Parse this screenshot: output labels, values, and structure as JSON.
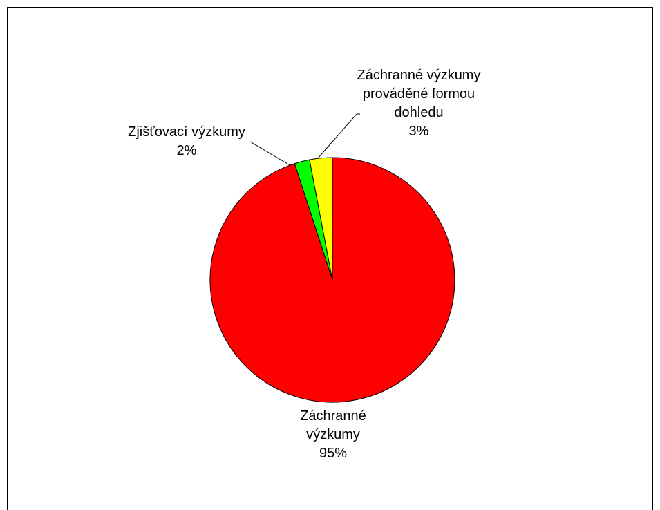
{
  "chart_data": {
    "type": "pie",
    "categories": [
      "Záchranné výzkumy",
      "Zjišťovací výzkumy",
      "Záchranné výzkumy prováděné formou dohledu"
    ],
    "values": [
      95,
      2,
      3
    ],
    "value_labels": [
      "95%",
      "2%",
      "3%"
    ],
    "colors": [
      "#ff0000",
      "#00ff00",
      "#ffff00"
    ]
  }
}
